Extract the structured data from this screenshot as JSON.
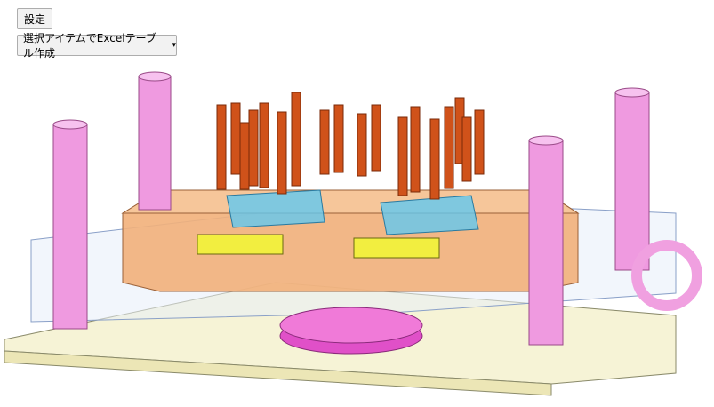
{
  "toolbar": {
    "settings_label": "設定",
    "excel_table_label": "選択アイテムでExcelテーブル作成",
    "excel_table_caret": "▾"
  },
  "colors": {
    "base_plate": "#f6f3d6",
    "cavity_block": "#f2b07a",
    "guide_pillar": "#ef9ae0",
    "bolt": "#d0521a",
    "locator_ring": "#e050c8",
    "eye_bolt": "#f0a0e0",
    "spacer": "#f2ee40",
    "coolant": "#62c8f0"
  },
  "viewport": {
    "model_name": "mold-assembly-3d"
  }
}
